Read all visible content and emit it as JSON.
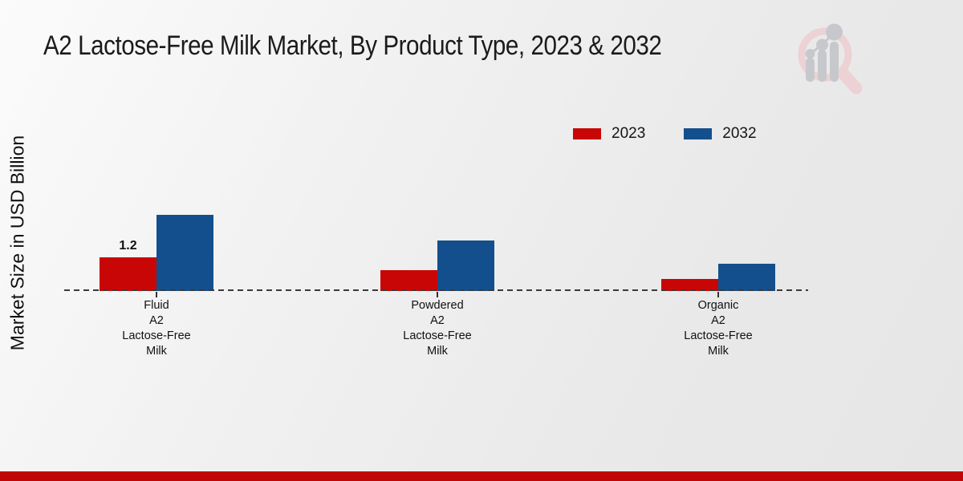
{
  "page": {
    "background_top": "#fbfbfb",
    "background_bottom": "#e6e6e6",
    "footer_bar_color": "#c00606"
  },
  "chart_data": {
    "type": "bar",
    "title": "A2 Lactose-Free Milk Market, By Product Type, 2023 & 2032",
    "ylabel": "Market Size in USD Billion",
    "xlabel": "",
    "categories": [
      "Fluid A2 Lactose-Free Milk",
      "Powdered A2 Lactose-Free Milk",
      "Organic A2 Lactose-Free Milk"
    ],
    "category_labels": [
      [
        "Fluid",
        "A2",
        "Lactose-Free",
        "Milk"
      ],
      [
        "Powdered",
        "A2",
        "Lactose-Free",
        "Milk"
      ],
      [
        "Organic",
        "A2",
        "Lactose-Free",
        "Milk"
      ]
    ],
    "series": [
      {
        "name": "2023",
        "color": "#c90606",
        "values": [
          1.2,
          0.75,
          0.42
        ]
      },
      {
        "name": "2032",
        "color": "#134f8c",
        "values": [
          2.7,
          1.8,
          0.97
        ]
      }
    ],
    "data_labels": [
      {
        "series_index": 0,
        "category_index": 0,
        "text": "1.2"
      }
    ],
    "legend_position": "upper-right",
    "grid": false,
    "baseline_style": "dashed",
    "baseline_color": "#3a3a3a",
    "ylim": [
      0,
      3
    ]
  },
  "watermark": {
    "icon": "magnifier-bar-chart-logo",
    "ring_color": "#ecd2d4",
    "bar_color": "#c7c8cc"
  }
}
